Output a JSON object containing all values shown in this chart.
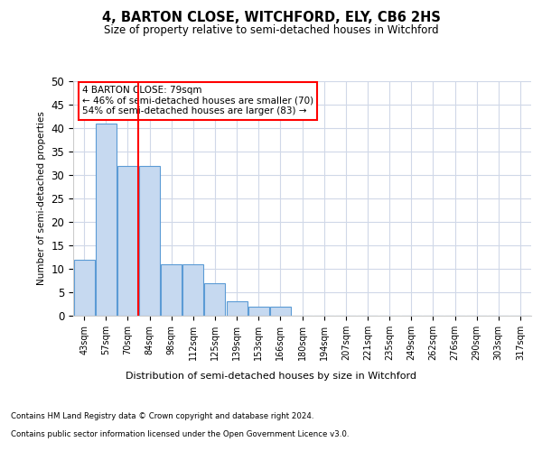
{
  "title": "4, BARTON CLOSE, WITCHFORD, ELY, CB6 2HS",
  "subtitle": "Size of property relative to semi-detached houses in Witchford",
  "xlabel": "Distribution of semi-detached houses by size in Witchford",
  "ylabel": "Number of semi-detached properties",
  "bar_labels": [
    "43sqm",
    "57sqm",
    "70sqm",
    "84sqm",
    "98sqm",
    "112sqm",
    "125sqm",
    "139sqm",
    "153sqm",
    "166sqm",
    "180sqm",
    "194sqm",
    "207sqm",
    "221sqm",
    "235sqm",
    "249sqm",
    "262sqm",
    "276sqm",
    "290sqm",
    "303sqm",
    "317sqm"
  ],
  "bar_values": [
    12,
    41,
    32,
    32,
    11,
    11,
    7,
    3,
    2,
    2,
    0,
    0,
    0,
    0,
    0,
    0,
    0,
    0,
    0,
    0,
    0
  ],
  "bar_color": "#c6d9f0",
  "bar_edge_color": "#5b9bd5",
  "vline_color": "red",
  "annotation_text": "4 BARTON CLOSE: 79sqm\n← 46% of semi-detached houses are smaller (70)\n54% of semi-detached houses are larger (83) →",
  "annotation_box_color": "white",
  "annotation_box_edge": "red",
  "ylim": [
    0,
    50
  ],
  "yticks": [
    0,
    5,
    10,
    15,
    20,
    25,
    30,
    35,
    40,
    45,
    50
  ],
  "footer_line1": "Contains HM Land Registry data © Crown copyright and database right 2024.",
  "footer_line2": "Contains public sector information licensed under the Open Government Licence v3.0.",
  "background_color": "#ffffff",
  "grid_color": "#d0d8e8"
}
